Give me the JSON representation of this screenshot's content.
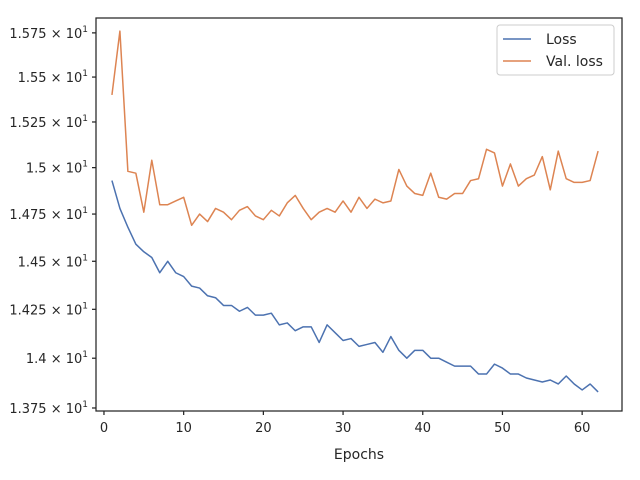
{
  "chart_data": {
    "type": "line",
    "title": "",
    "xlabel": "Epochs",
    "ylabel": "",
    "xlim": [
      -1.0,
      65.0
    ],
    "ylim": [
      13.735,
      15.835
    ],
    "x_ticks": [
      0,
      10,
      20,
      30,
      40,
      50,
      60
    ],
    "x_tick_labels": [
      "0",
      "10",
      "20",
      "30",
      "40",
      "50",
      "60"
    ],
    "y_ticks": [
      13.75,
      14.0,
      14.25,
      14.5,
      14.75,
      15.0,
      15.25,
      15.5,
      15.75
    ],
    "y_tick_labels": [
      {
        "base": "1.375",
        "exp": "1"
      },
      {
        "base": "1.4",
        "exp": "1"
      },
      {
        "base": "1.425",
        "exp": "1"
      },
      {
        "base": "1.45",
        "exp": "1"
      },
      {
        "base": "1.475",
        "exp": "1"
      },
      {
        "base": "1.5",
        "exp": "1"
      },
      {
        "base": "1.525",
        "exp": "1"
      },
      {
        "base": "1.55",
        "exp": "1"
      },
      {
        "base": "1.575",
        "exp": "1"
      }
    ],
    "y_scale": "log",
    "grid": false,
    "legend_position": "top-right",
    "x": [
      1,
      2,
      3,
      4,
      5,
      6,
      7,
      8,
      9,
      10,
      11,
      12,
      13,
      14,
      15,
      16,
      17,
      18,
      19,
      20,
      21,
      22,
      23,
      24,
      25,
      26,
      27,
      28,
      29,
      30,
      31,
      32,
      33,
      34,
      35,
      36,
      37,
      38,
      39,
      40,
      41,
      42,
      43,
      44,
      45,
      46,
      47,
      48,
      49,
      50,
      51,
      52,
      53,
      54,
      55,
      56,
      57,
      58,
      59,
      60,
      61,
      62
    ],
    "series": [
      {
        "name": "Loss",
        "color": "#4c72b0",
        "values": [
          14.93,
          14.78,
          14.68,
          14.59,
          14.55,
          14.52,
          14.44,
          14.5,
          14.44,
          14.42,
          14.37,
          14.36,
          14.32,
          14.31,
          14.27,
          14.27,
          14.24,
          14.26,
          14.22,
          14.22,
          14.23,
          14.17,
          14.18,
          14.14,
          14.16,
          14.16,
          14.08,
          14.17,
          14.13,
          14.09,
          14.1,
          14.06,
          14.07,
          14.08,
          14.03,
          14.11,
          14.04,
          14.0,
          14.04,
          14.04,
          14.0,
          14.0,
          13.98,
          13.96,
          13.96,
          13.96,
          13.92,
          13.92,
          13.97,
          13.95,
          13.92,
          13.92,
          13.9,
          13.89,
          13.88,
          13.89,
          13.87,
          13.91,
          13.87,
          13.84,
          13.87,
          13.83
        ]
      },
      {
        "name": "Val. loss",
        "color": "#dd8452",
        "values": [
          15.4,
          15.76,
          14.98,
          14.97,
          14.76,
          15.04,
          14.8,
          14.8,
          14.82,
          14.84,
          14.69,
          14.75,
          14.71,
          14.78,
          14.76,
          14.72,
          14.77,
          14.79,
          14.74,
          14.72,
          14.77,
          14.74,
          14.81,
          14.85,
          14.78,
          14.72,
          14.76,
          14.78,
          14.76,
          14.82,
          14.76,
          14.84,
          14.78,
          14.83,
          14.81,
          14.82,
          14.99,
          14.9,
          14.86,
          14.85,
          14.97,
          14.84,
          14.83,
          14.86,
          14.86,
          14.93,
          14.94,
          15.1,
          15.08,
          14.9,
          15.02,
          14.9,
          14.94,
          14.96,
          15.06,
          14.88,
          15.09,
          14.94,
          14.92,
          14.92,
          14.93,
          15.09
        ]
      }
    ]
  }
}
